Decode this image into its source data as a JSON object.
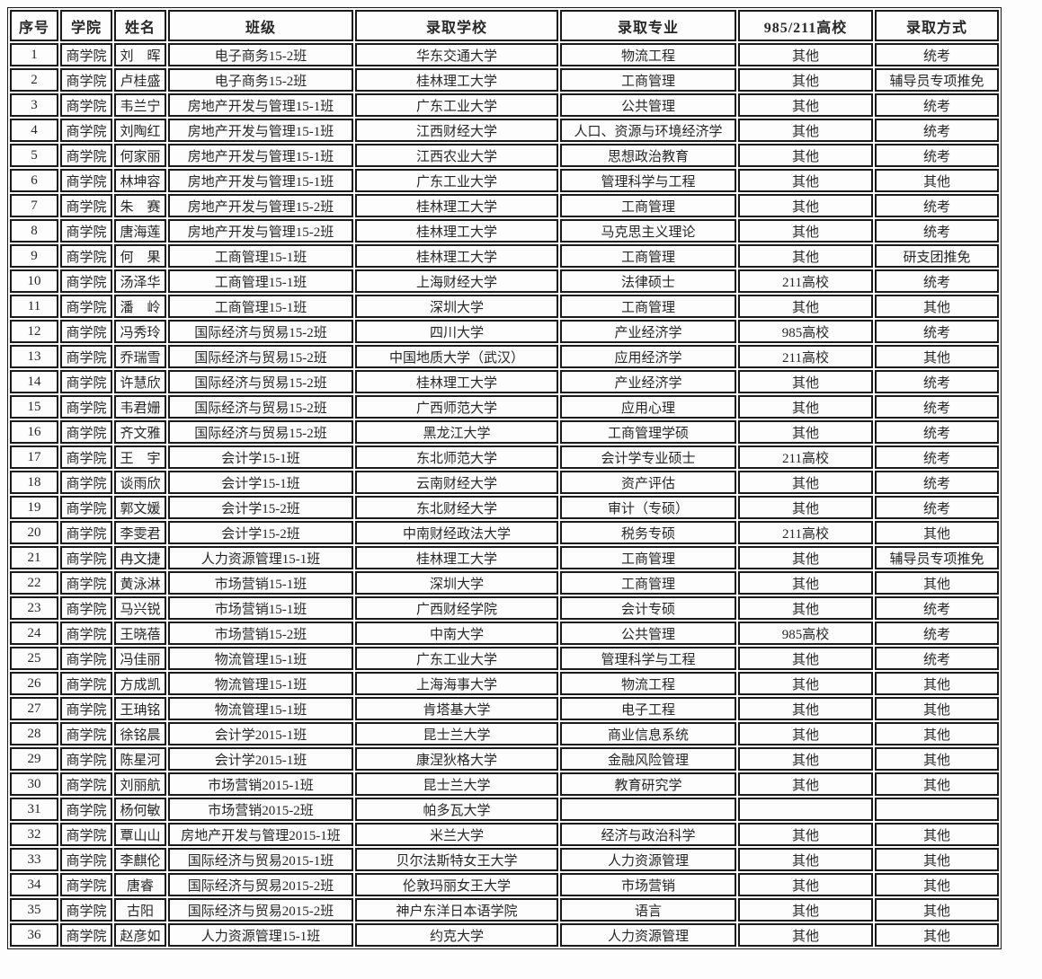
{
  "colors": {
    "border": "#1a1a1a",
    "text": "#262626",
    "page_background": "#fdfdfd"
  },
  "table": {
    "columns": [
      "序号",
      "学院",
      "姓名",
      "班级",
      "录取学校",
      "录取专业",
      "985/211高校",
      "录取方式"
    ],
    "rows": [
      [
        "1",
        "商学院",
        "刘　晖",
        "电子商务15-2班",
        "华东交通大学",
        "物流工程",
        "其他",
        "统考"
      ],
      [
        "2",
        "商学院",
        "卢桂盛",
        "电子商务15-2班",
        "桂林理工大学",
        "工商管理",
        "其他",
        "辅导员专项推免"
      ],
      [
        "3",
        "商学院",
        "韦兰宁",
        "房地产开发与管理15-1班",
        "广东工业大学",
        "公共管理",
        "其他",
        "统考"
      ],
      [
        "4",
        "商学院",
        "刘陶红",
        "房地产开发与管理15-1班",
        "江西财经大学",
        "人口、资源与环境经济学",
        "其他",
        "统考"
      ],
      [
        "5",
        "商学院",
        "何家丽",
        "房地产开发与管理15-1班",
        "江西农业大学",
        "思想政治教育",
        "其他",
        "统考"
      ],
      [
        "6",
        "商学院",
        "林坤容",
        "房地产开发与管理15-1班",
        "广东工业大学",
        "管理科学与工程",
        "其他",
        "其他"
      ],
      [
        "7",
        "商学院",
        "朱　赛",
        "房地产开发与管理15-2班",
        "桂林理工大学",
        "工商管理",
        "其他",
        "统考"
      ],
      [
        "8",
        "商学院",
        "唐海莲",
        "房地产开发与管理15-2班",
        "桂林理工大学",
        "马克思主义理论",
        "其他",
        "统考"
      ],
      [
        "9",
        "商学院",
        "何　果",
        "工商管理15-1班",
        "桂林理工大学",
        "工商管理",
        "其他",
        "研支团推免"
      ],
      [
        "10",
        "商学院",
        "汤泽华",
        "工商管理15-1班",
        "上海财经大学",
        "法律硕士",
        "211高校",
        "统考"
      ],
      [
        "11",
        "商学院",
        "潘　岭",
        "工商管理15-1班",
        "深圳大学",
        "工商管理",
        "其他",
        "其他"
      ],
      [
        "12",
        "商学院",
        "冯秀玲",
        "国际经济与贸易15-2班",
        "四川大学",
        "产业经济学",
        "985高校",
        "统考"
      ],
      [
        "13",
        "商学院",
        "乔瑞雪",
        "国际经济与贸易15-2班",
        "中国地质大学（武汉）",
        "应用经济学",
        "211高校",
        "其他"
      ],
      [
        "14",
        "商学院",
        "许慧欣",
        "国际经济与贸易15-2班",
        "桂林理工大学",
        "产业经济学",
        "其他",
        "统考"
      ],
      [
        "15",
        "商学院",
        "韦君姗",
        "国际经济与贸易15-2班",
        "广西师范大学",
        "应用心理",
        "其他",
        "统考"
      ],
      [
        "16",
        "商学院",
        "齐文雅",
        "国际经济与贸易15-2班",
        "黑龙江大学",
        "工商管理学硕",
        "其他",
        "统考"
      ],
      [
        "17",
        "商学院",
        "王　宇",
        "会计学15-1班",
        "东北师范大学",
        "会计学专业硕士",
        "211高校",
        "统考"
      ],
      [
        "18",
        "商学院",
        "谈雨欣",
        "会计学15-1班",
        "云南财经大学",
        "资产评估",
        "其他",
        "统考"
      ],
      [
        "19",
        "商学院",
        "郭文媛",
        "会计学15-2班",
        "东北财经大学",
        "审计（专硕）",
        "其他",
        "统考"
      ],
      [
        "20",
        "商学院",
        "李雯君",
        "会计学15-2班",
        "中南财经政法大学",
        "税务专硕",
        "211高校",
        "其他"
      ],
      [
        "21",
        "商学院",
        "冉文捷",
        "人力资源管理15-1班",
        "桂林理工大学",
        "工商管理",
        "其他",
        "辅导员专项推免"
      ],
      [
        "22",
        "商学院",
        "黄泳淋",
        "市场营销15-1班",
        "深圳大学",
        "工商管理",
        "其他",
        "其他"
      ],
      [
        "23",
        "商学院",
        "马兴锐",
        "市场营销15-1班",
        "广西财经学院",
        "会计专硕",
        "其他",
        "统考"
      ],
      [
        "24",
        "商学院",
        "王晓蓓",
        "市场营销15-2班",
        "中南大学",
        "公共管理",
        "985高校",
        "统考"
      ],
      [
        "25",
        "商学院",
        "冯佳丽",
        "物流管理15-1班",
        "广东工业大学",
        "管理科学与工程",
        "其他",
        "统考"
      ],
      [
        "26",
        "商学院",
        "方成凯",
        "物流管理15-1班",
        "上海海事大学",
        "物流工程",
        "其他",
        "其他"
      ],
      [
        "27",
        "商学院",
        "王珃铭",
        "物流管理15-1班",
        "肯塔基大学",
        "电子工程",
        "其他",
        "其他"
      ],
      [
        "28",
        "商学院",
        "徐铭晨",
        "会计学2015-1班",
        "昆士兰大学",
        "商业信息系统",
        "其他",
        "其他"
      ],
      [
        "29",
        "商学院",
        "陈星河",
        "会计学2015-1班",
        "康涅狄格大学",
        "金融风险管理",
        "其他",
        "其他"
      ],
      [
        "30",
        "商学院",
        "刘丽航",
        "市场营销2015-1班",
        "昆士兰大学",
        "教育研究学",
        "其他",
        "其他"
      ],
      [
        "31",
        "商学院",
        "杨何敏",
        "市场营销2015-2班",
        "帕多瓦大学",
        "",
        "",
        ""
      ],
      [
        "32",
        "商学院",
        "覃山山",
        "房地产开发与管理2015-1班",
        "米兰大学",
        "经济与政治科学",
        "其他",
        "其他"
      ],
      [
        "33",
        "商学院",
        "李麒伦",
        "国际经济与贸易2015-1班",
        "贝尔法斯特女王大学",
        "人力资源管理",
        "其他",
        "其他"
      ],
      [
        "34",
        "商学院",
        "唐睿",
        "国际经济与贸易2015-2班",
        "伦敦玛丽女王大学",
        "市场营销",
        "其他",
        "其他"
      ],
      [
        "35",
        "商学院",
        "古阳",
        "国际经济与贸易2015-2班",
        "神户东洋日本语学院",
        "语言",
        "其他",
        "其他"
      ],
      [
        "36",
        "商学院",
        "赵彦如",
        "人力资源管理15-1班",
        "约克大学",
        "人力资源管理",
        "其他",
        "其他"
      ]
    ]
  }
}
